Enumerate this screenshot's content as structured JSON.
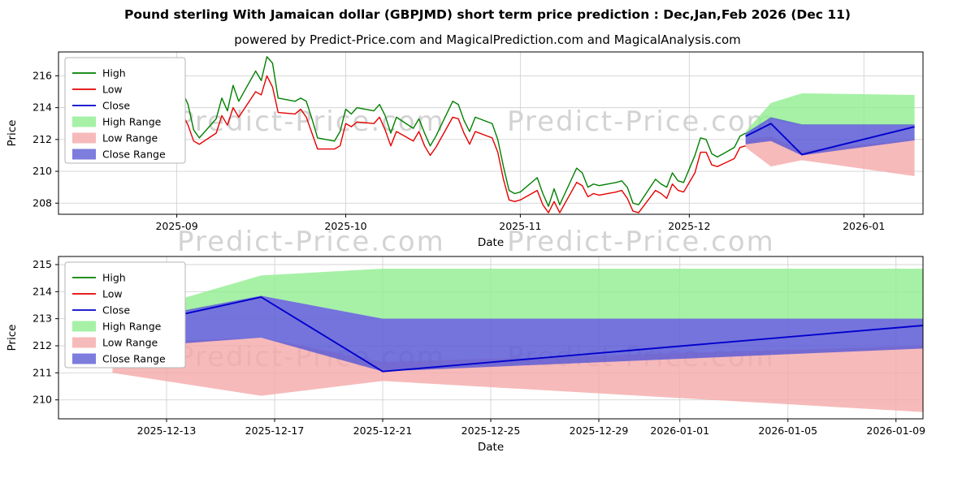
{
  "title": "Pound sterling With Jamaican dollar (GBPJMD) short term price prediction : Dec,Jan,Feb 2026 (Dec 11)",
  "subtitle": "powered by Predict-Price.com and MagicalPrediction.com and MagicalAnalysis.com",
  "watermark": {
    "text": "Predict-Price.com"
  },
  "colors": {
    "high_line": "#008000",
    "low_line": "#e60000",
    "close_line": "#0000cd",
    "high_range": "#90ee90",
    "low_range": "#f5a9a9",
    "close_range": "#5c5cd6",
    "grid": "#d3d3d3"
  },
  "chart_data": [
    {
      "id": "chart-top",
      "type": "line",
      "xlabel": "Date",
      "ylabel": "Price",
      "x_unit": "days since 2025-09-01",
      "xlim": [
        -21,
        132.5
      ],
      "ylim": [
        207.3,
        217.5
      ],
      "yticks": [
        208,
        210,
        212,
        214,
        216
      ],
      "xticks": [
        {
          "pos": 0,
          "label": "2025-09"
        },
        {
          "pos": 30,
          "label": "2025-10"
        },
        {
          "pos": 61,
          "label": "2025-11"
        },
        {
          "pos": 91,
          "label": "2025-12"
        },
        {
          "pos": 122,
          "label": "2026-01"
        }
      ],
      "grid": true,
      "legend_position": "upper-left",
      "legend": [
        {
          "label": "High",
          "type": "line",
          "color": "#008000"
        },
        {
          "label": "Low",
          "type": "line",
          "color": "#e60000"
        },
        {
          "label": "Close",
          "type": "line",
          "color": "#0000cd"
        },
        {
          "label": "High Range",
          "type": "patch",
          "color": "#90ee90"
        },
        {
          "label": "Low Range",
          "type": "patch",
          "color": "#f5a9a9"
        },
        {
          "label": "Close Range",
          "type": "patch",
          "color": "#5c5cd6"
        }
      ],
      "bands": [
        {
          "name": "High Range",
          "color": "#90ee90",
          "opacity": 0.8,
          "x": [
            101,
            105.5,
            111,
            131
          ],
          "upper": [
            212.5,
            214.3,
            214.9,
            214.8
          ],
          "lower": [
            212.2,
            213.3,
            212.9,
            212.9
          ]
        },
        {
          "name": "Low Range",
          "color": "#f5a9a9",
          "opacity": 0.8,
          "x": [
            101,
            105.5,
            111,
            131
          ],
          "upper": [
            212.0,
            212.2,
            211.3,
            212.0
          ],
          "lower": [
            211.5,
            210.3,
            210.7,
            209.7
          ]
        },
        {
          "name": "Close Range",
          "color": "#5c5cd6",
          "opacity": 0.85,
          "x": [
            101,
            105.5,
            111,
            131
          ],
          "upper": [
            212.4,
            213.4,
            212.95,
            212.95
          ],
          "lower": [
            211.7,
            211.9,
            211.0,
            211.95
          ]
        }
      ],
      "series": [
        {
          "name": "High",
          "color": "#008000",
          "x": [
            -5,
            -4,
            -3,
            -2,
            -1,
            0,
            1,
            2,
            3,
            4,
            7,
            8,
            9,
            10,
            11,
            14,
            15,
            16,
            17,
            18,
            21,
            22,
            23,
            24,
            25,
            28,
            29,
            30,
            31,
            32,
            35,
            36,
            37,
            38,
            39,
            42,
            43,
            44,
            45,
            46,
            49,
            50,
            51,
            52,
            53,
            56,
            57,
            58,
            59,
            60,
            61,
            64,
            65,
            66,
            67,
            68,
            71,
            72,
            73,
            74,
            75,
            78,
            79,
            80,
            81,
            82,
            85,
            86,
            87,
            88,
            89,
            90,
            92,
            93,
            94,
            95,
            96,
            99,
            100,
            101
          ],
          "y": [
            214.0,
            214.6,
            214.2,
            213.5,
            213.2,
            213.6,
            215.0,
            214.2,
            212.6,
            212.1,
            213.3,
            214.6,
            213.8,
            215.4,
            214.4,
            216.3,
            215.7,
            217.2,
            216.8,
            214.6,
            214.4,
            214.6,
            214.4,
            213.3,
            212.1,
            211.9,
            212.5,
            213.9,
            213.6,
            214.0,
            213.8,
            214.2,
            213.5,
            212.4,
            213.4,
            212.7,
            213.3,
            212.4,
            211.6,
            212.2,
            214.4,
            214.2,
            213.2,
            212.5,
            213.4,
            213.0,
            212.0,
            210.3,
            208.8,
            208.6,
            208.7,
            209.6,
            208.6,
            207.8,
            208.9,
            207.9,
            210.2,
            209.9,
            209.0,
            209.2,
            209.1,
            209.3,
            209.4,
            209.0,
            208.0,
            207.9,
            209.5,
            209.2,
            209.0,
            209.9,
            209.4,
            209.3,
            211.0,
            212.1,
            212.0,
            211.1,
            210.9,
            211.5,
            212.2,
            212.4
          ]
        },
        {
          "name": "Low",
          "color": "#e60000",
          "x": [
            -5,
            -4,
            -3,
            -2,
            -1,
            0,
            1,
            2,
            3,
            4,
            7,
            8,
            9,
            10,
            11,
            14,
            15,
            16,
            17,
            18,
            21,
            22,
            23,
            24,
            25,
            28,
            29,
            30,
            31,
            32,
            35,
            36,
            37,
            38,
            39,
            42,
            43,
            44,
            45,
            46,
            49,
            50,
            51,
            52,
            53,
            56,
            57,
            58,
            59,
            60,
            61,
            64,
            65,
            66,
            67,
            68,
            71,
            72,
            73,
            74,
            75,
            78,
            79,
            80,
            81,
            82,
            85,
            86,
            87,
            88,
            89,
            90,
            92,
            93,
            94,
            95,
            96,
            99,
            100,
            101
          ],
          "y": [
            213.2,
            213.8,
            213.4,
            212.6,
            212.4,
            212.8,
            213.6,
            212.9,
            211.9,
            211.7,
            212.4,
            213.5,
            212.9,
            214.0,
            213.4,
            215.0,
            214.8,
            216.0,
            215.3,
            213.7,
            213.6,
            213.9,
            213.4,
            212.4,
            211.4,
            211.4,
            211.6,
            213.0,
            212.8,
            213.1,
            213.0,
            213.4,
            212.6,
            211.6,
            212.5,
            211.9,
            212.5,
            211.6,
            211.0,
            211.5,
            213.4,
            213.3,
            212.4,
            211.7,
            212.5,
            212.1,
            211.2,
            209.5,
            208.2,
            208.1,
            208.2,
            208.8,
            207.9,
            207.4,
            208.1,
            207.4,
            209.3,
            209.1,
            208.4,
            208.6,
            208.5,
            208.7,
            208.8,
            208.3,
            207.5,
            207.4,
            208.8,
            208.6,
            208.3,
            209.2,
            208.8,
            208.7,
            209.9,
            211.2,
            211.2,
            210.4,
            210.3,
            210.8,
            211.5,
            211.6
          ]
        },
        {
          "name": "Close",
          "color": "#0000cd",
          "x": [
            101,
            105.5,
            111,
            131
          ],
          "y": [
            212.2,
            213.0,
            211.05,
            212.8
          ]
        }
      ]
    },
    {
      "id": "chart-bottom",
      "type": "line",
      "xlabel": "Date",
      "ylabel": "Price",
      "x_unit": "days since 2025-12-09",
      "xlim": [
        0,
        32
      ],
      "ylim": [
        209.3,
        215.3
      ],
      "yticks": [
        210,
        211,
        212,
        213,
        214,
        215
      ],
      "xticks": [
        {
          "pos": 4,
          "label": "2025-12-13"
        },
        {
          "pos": 8,
          "label": "2025-12-17"
        },
        {
          "pos": 12,
          "label": "2025-12-21"
        },
        {
          "pos": 16,
          "label": "2025-12-25"
        },
        {
          "pos": 20,
          "label": "2025-12-29"
        },
        {
          "pos": 23,
          "label": "2026-01-01"
        },
        {
          "pos": 27,
          "label": "2026-01-05"
        },
        {
          "pos": 31,
          "label": "2026-01-09"
        }
      ],
      "grid": true,
      "legend_position": "upper-left",
      "legend": [
        {
          "label": "High",
          "type": "line",
          "color": "#008000"
        },
        {
          "label": "Low",
          "type": "line",
          "color": "#e60000"
        },
        {
          "label": "Close",
          "type": "line",
          "color": "#0000cd"
        },
        {
          "label": "High Range",
          "type": "patch",
          "color": "#90ee90"
        },
        {
          "label": "Low Range",
          "type": "patch",
          "color": "#f5a9a9"
        },
        {
          "label": "Close Range",
          "type": "patch",
          "color": "#5c5cd6"
        }
      ],
      "bands": [
        {
          "name": "High Range",
          "color": "#90ee90",
          "opacity": 0.8,
          "x": [
            2,
            7.5,
            12,
            32
          ],
          "upper": [
            213.0,
            214.6,
            214.85,
            214.85
          ],
          "lower": [
            212.7,
            213.85,
            213.0,
            213.0
          ]
        },
        {
          "name": "Low Range",
          "color": "#f5a9a9",
          "opacity": 0.8,
          "x": [
            2,
            7.5,
            12,
            32
          ],
          "upper": [
            212.1,
            212.3,
            211.4,
            212.0
          ],
          "lower": [
            211.0,
            210.15,
            210.7,
            209.55
          ]
        },
        {
          "name": "Close Range",
          "color": "#5c5cd6",
          "opacity": 0.85,
          "x": [
            2,
            7.5,
            12,
            32
          ],
          "upper": [
            212.8,
            213.85,
            213.0,
            213.0
          ],
          "lower": [
            211.9,
            212.3,
            211.05,
            211.9
          ]
        }
      ],
      "series": [
        {
          "name": "Close",
          "color": "#0000cd",
          "x": [
            2,
            7.5,
            12,
            32
          ],
          "y": [
            212.6,
            213.8,
            211.05,
            212.75
          ]
        }
      ]
    }
  ]
}
